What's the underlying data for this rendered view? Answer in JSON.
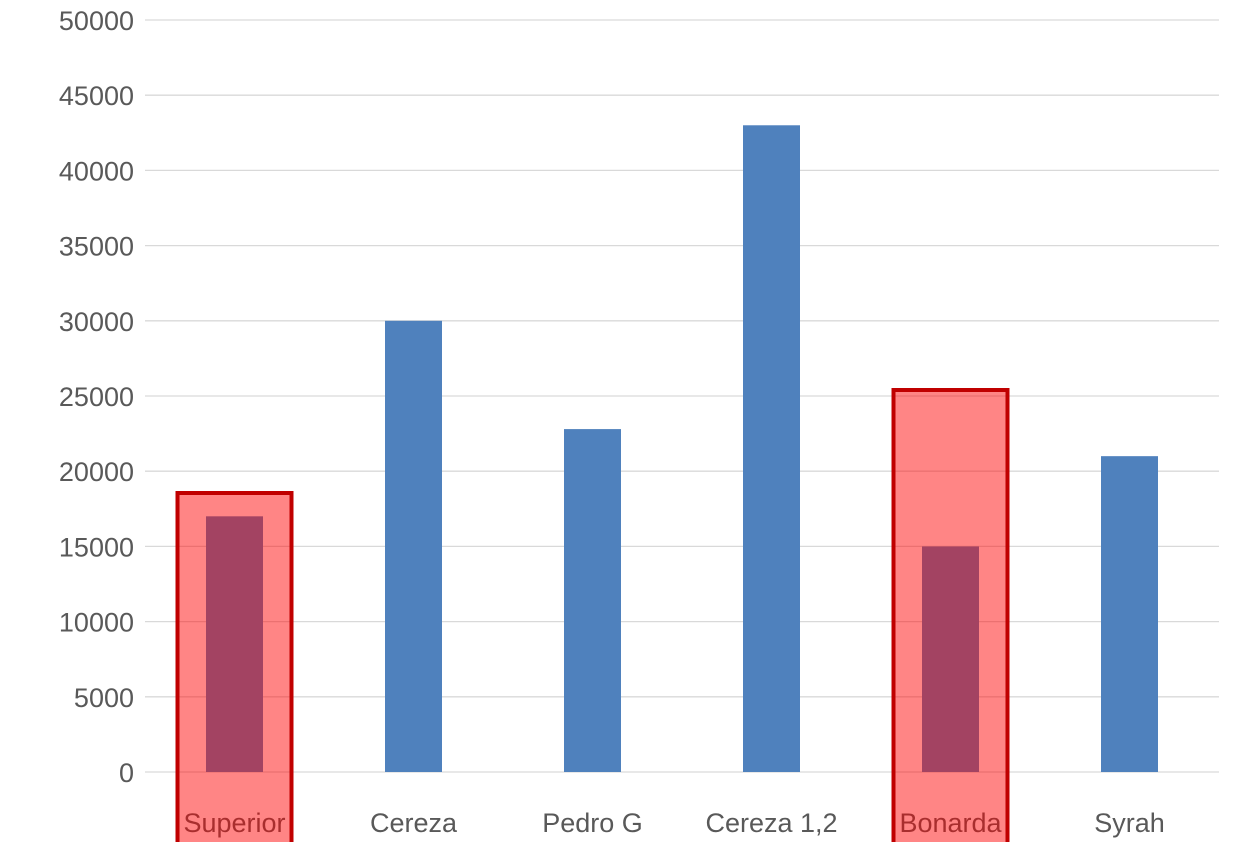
{
  "chart_data": {
    "type": "bar",
    "categories": [
      "Superior",
      "Cereza",
      "Pedro G",
      "Cereza 1,2",
      "Bonarda",
      "Syrah"
    ],
    "values": [
      17000,
      30000,
      22800,
      43000,
      15000,
      21000
    ],
    "ylim": [
      0,
      50000
    ],
    "yticks": [
      0,
      5000,
      10000,
      15000,
      20000,
      25000,
      30000,
      35000,
      40000,
      45000,
      50000
    ],
    "grid": true,
    "legend": "none",
    "colors": {
      "bar": "#4f81bd",
      "grid": "#d9d9d9",
      "tick_text": "#595959",
      "highlight_fill": "#ff0000",
      "highlight_stroke": "#c00000"
    },
    "highlighted_categories": [
      "Superior",
      "Bonarda"
    ]
  }
}
